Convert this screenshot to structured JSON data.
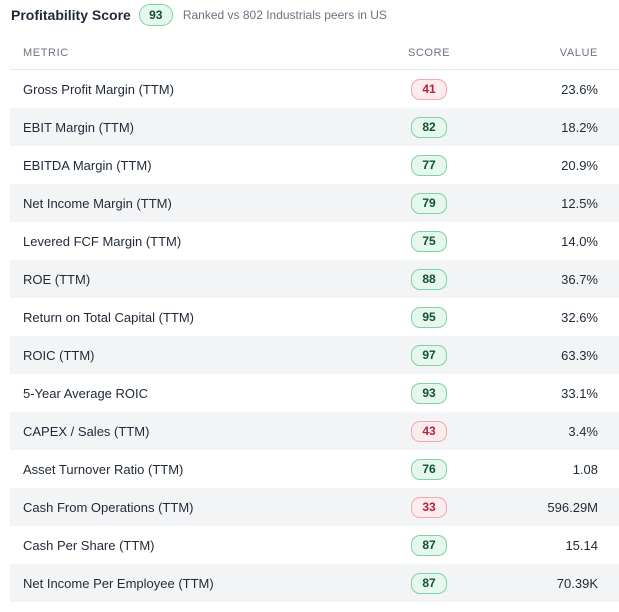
{
  "header": {
    "title": "Profitability Score",
    "score": "93",
    "subtitle": "Ranked vs 802 Industrials peers in US"
  },
  "table": {
    "columns": {
      "metric": "METRIC",
      "score": "SCORE",
      "value": "VALUE"
    },
    "rows": [
      {
        "metric": "Gross Profit Margin (TTM)",
        "score": "41",
        "rating": "bad",
        "value": "23.6%"
      },
      {
        "metric": "EBIT Margin (TTM)",
        "score": "82",
        "rating": "good",
        "value": "18.2%"
      },
      {
        "metric": "EBITDA Margin (TTM)",
        "score": "77",
        "rating": "good",
        "value": "20.9%"
      },
      {
        "metric": "Net Income Margin (TTM)",
        "score": "79",
        "rating": "good",
        "value": "12.5%"
      },
      {
        "metric": "Levered FCF Margin (TTM)",
        "score": "75",
        "rating": "good",
        "value": "14.0%"
      },
      {
        "metric": "ROE (TTM)",
        "score": "88",
        "rating": "good",
        "value": "36.7%"
      },
      {
        "metric": "Return on Total Capital (TTM)",
        "score": "95",
        "rating": "good",
        "value": "32.6%"
      },
      {
        "metric": "ROIC (TTM)",
        "score": "97",
        "rating": "good",
        "value": "63.3%"
      },
      {
        "metric": "5-Year Average ROIC",
        "score": "93",
        "rating": "good",
        "value": "33.1%"
      },
      {
        "metric": "CAPEX / Sales (TTM)",
        "score": "43",
        "rating": "bad",
        "value": "3.4%"
      },
      {
        "metric": "Asset Turnover Ratio (TTM)",
        "score": "76",
        "rating": "good",
        "value": "1.08"
      },
      {
        "metric": "Cash From Operations (TTM)",
        "score": "33",
        "rating": "bad",
        "value": "596.29M"
      },
      {
        "metric": "Cash Per Share (TTM)",
        "score": "87",
        "rating": "good",
        "value": "15.14"
      },
      {
        "metric": "Net Income Per Employee (TTM)",
        "score": "87",
        "rating": "good",
        "value": "70.39K"
      }
    ]
  },
  "colors": {
    "good_bg": "#e6f7ee",
    "good_text": "#0f5132",
    "bad_bg": "#fdecee",
    "bad_text": "#b4233a",
    "row_alt_bg": "#f3f4f6"
  }
}
